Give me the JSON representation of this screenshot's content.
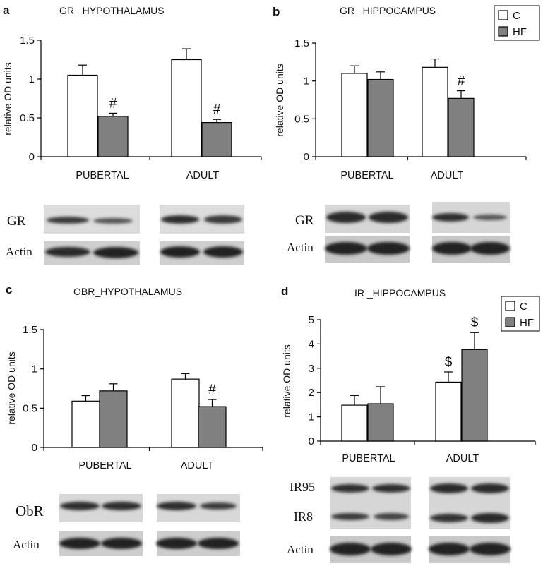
{
  "legend": {
    "c": "C",
    "hf": "HF",
    "c_color": "#ffffff",
    "hf_color": "#808080"
  },
  "chart_data": [
    {
      "panel": "a",
      "type": "bar",
      "title": "GR _HYPOTHALAMUS",
      "ylabel": "relative OD units",
      "ylim": [
        0,
        1.5
      ],
      "yticks": [
        "0",
        "0.5",
        "1",
        "1.5"
      ],
      "categories": [
        "PUBERTAL",
        "ADULT"
      ],
      "series": [
        {
          "name": "C",
          "values": [
            1.05,
            1.25
          ],
          "errors": [
            0.13,
            0.14
          ]
        },
        {
          "name": "HF",
          "values": [
            0.52,
            0.44
          ],
          "errors": [
            0.04,
            0.04
          ]
        }
      ],
      "annotations": [
        {
          "series": 1,
          "category": 0,
          "text": "#"
        },
        {
          "series": 1,
          "category": 1,
          "text": "#"
        }
      ],
      "blots": [
        "GR",
        "Actin"
      ]
    },
    {
      "panel": "b",
      "type": "bar",
      "title": "GR _HIPPOCAMPUS",
      "ylabel": "relative OD units",
      "ylim": [
        0,
        1.5
      ],
      "yticks": [
        "0",
        "0.5",
        "1",
        "1.5"
      ],
      "categories": [
        "PUBERTAL",
        "ADULT"
      ],
      "series": [
        {
          "name": "C",
          "values": [
            1.1,
            1.18
          ],
          "errors": [
            0.1,
            0.11
          ]
        },
        {
          "name": "HF",
          "values": [
            1.02,
            0.77
          ],
          "errors": [
            0.1,
            0.1
          ]
        }
      ],
      "annotations": [
        {
          "series": 1,
          "category": 1,
          "text": "#"
        }
      ],
      "blots": [
        "GR",
        "Actin"
      ]
    },
    {
      "panel": "c",
      "type": "bar",
      "title": "OBR_HYPOTHALAMUS",
      "ylabel": "relative OD units",
      "ylim": [
        0,
        1.5
      ],
      "yticks": [
        "0",
        "0.5",
        "1",
        "1.5"
      ],
      "categories": [
        "PUBERTAL",
        "ADULT"
      ],
      "series": [
        {
          "name": "C",
          "values": [
            0.59,
            0.87
          ],
          "errors": [
            0.07,
            0.07
          ]
        },
        {
          "name": "HF",
          "values": [
            0.72,
            0.52
          ],
          "errors": [
            0.09,
            0.09
          ]
        }
      ],
      "annotations": [
        {
          "series": 1,
          "category": 1,
          "text": "#"
        }
      ],
      "blots": [
        "ObR",
        "Actin"
      ]
    },
    {
      "panel": "d",
      "type": "bar",
      "title": "IR _HIPPOCAMPUS",
      "ylabel": "relative OD units",
      "ylim": [
        0,
        5
      ],
      "yticks": [
        "0",
        "1",
        "2",
        "3",
        "4",
        "5"
      ],
      "categories": [
        "PUBERTAL",
        "ADULT"
      ],
      "series": [
        {
          "name": "C",
          "values": [
            1.48,
            2.43
          ],
          "errors": [
            0.4,
            0.42
          ]
        },
        {
          "name": "HF",
          "values": [
            1.54,
            3.77
          ],
          "errors": [
            0.7,
            0.7
          ]
        }
      ],
      "annotations": [
        {
          "series": 0,
          "category": 1,
          "text": "$"
        },
        {
          "series": 1,
          "category": 1,
          "text": "$"
        }
      ],
      "blots": [
        "IR95",
        "IR8",
        "Actin"
      ]
    }
  ]
}
